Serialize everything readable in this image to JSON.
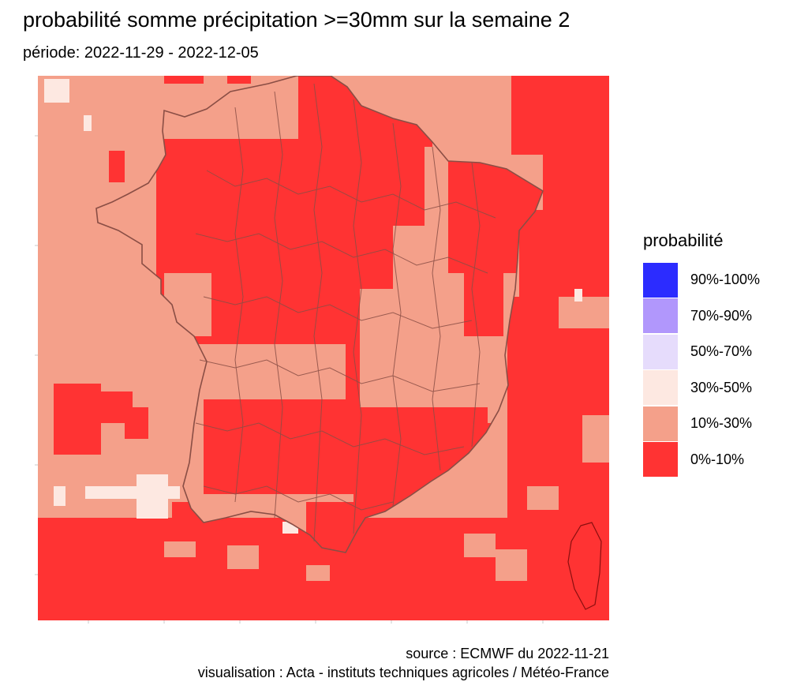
{
  "title": "probabilité somme précipitation >=30mm sur la semaine 2",
  "subtitle": "période: 2022-11-29 - 2022-12-05",
  "legend": {
    "title": "probabilité",
    "items": [
      {
        "label": "90%-100%",
        "color": "#2c2cff"
      },
      {
        "label": "70%-90%",
        "color": "#b197fc"
      },
      {
        "label": "50%-70%",
        "color": "#e6dcfc"
      },
      {
        "label": "30%-50%",
        "color": "#fde8e1"
      },
      {
        "label": "10%-30%",
        "color": "#f4a08a"
      },
      {
        "label": "0%-10%",
        "color": "#ff3333"
      }
    ]
  },
  "caption": {
    "source": "source : ECMWF du 2022-11-21",
    "visualisation": "visualisation : Acta - instituts techniques agricoles / Météo-France"
  },
  "colors": {
    "p0_10": "#ff3333",
    "p10_30": "#f4a08a",
    "p30_50": "#fde8e1",
    "border": "#8a4e45",
    "border_dark": "#8a0f0f"
  }
}
